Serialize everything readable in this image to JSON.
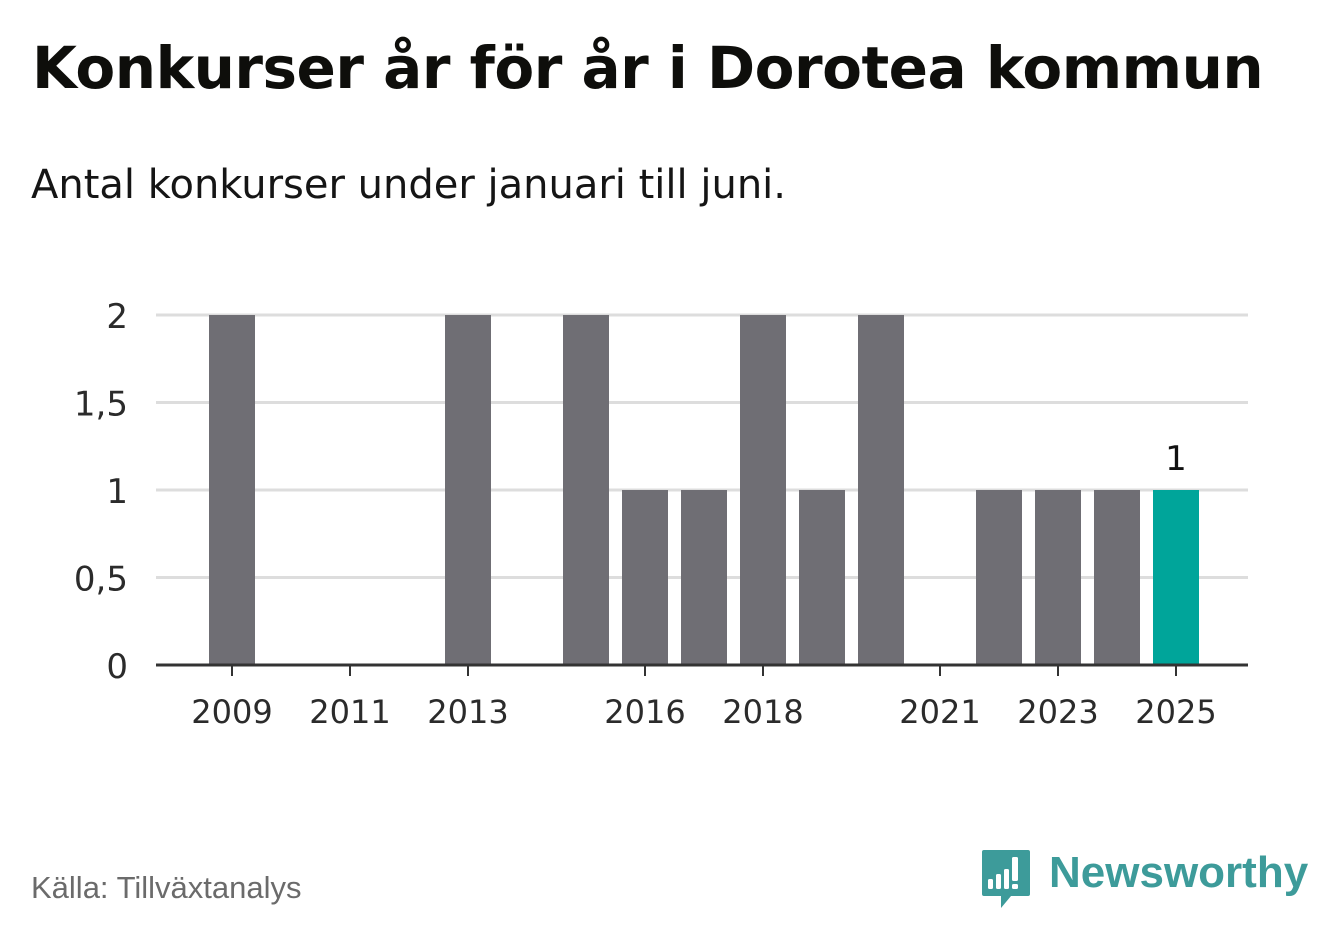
{
  "title": "Konkurser år för år i Dorotea kommun",
  "subtitle": "Antal konkurser under januari till juni.",
  "source": "Källa: Tillväxtanalys",
  "brand": {
    "name": "Newsworthy",
    "logo_icon": "newsworthy-bar-chart-icon"
  },
  "colors": {
    "bar": "#6f6e74",
    "highlight": "#00a59a",
    "grid": "#dddddd",
    "axis": "#333333",
    "brand": "#3d9b9a"
  },
  "chart_data": {
    "type": "bar",
    "categories": [
      "2009",
      "2010",
      "2011",
      "2012",
      "2013",
      "2014",
      "2015",
      "2016",
      "2017",
      "2018",
      "2019",
      "2020",
      "2021",
      "2022",
      "2023",
      "2024",
      "2025"
    ],
    "values": [
      2,
      0,
      0,
      0,
      2,
      0,
      2,
      1,
      1,
      2,
      1,
      2,
      0,
      1,
      1,
      1,
      1
    ],
    "highlight_category": "2025",
    "data_labels": [
      {
        "category": "2025",
        "text": "1"
      }
    ],
    "x_tick_labels": [
      "2009",
      "2011",
      "2013",
      "2016",
      "2018",
      "2021",
      "2023",
      "2025"
    ],
    "y_ticks": [
      0,
      0.5,
      1,
      1.5,
      2
    ],
    "y_tick_labels": [
      "0",
      "0,5",
      "1",
      "1,5",
      "2"
    ],
    "ylim": [
      0,
      2
    ],
    "xlabel": "",
    "ylabel": "",
    "grid": true,
    "legend": "none"
  }
}
